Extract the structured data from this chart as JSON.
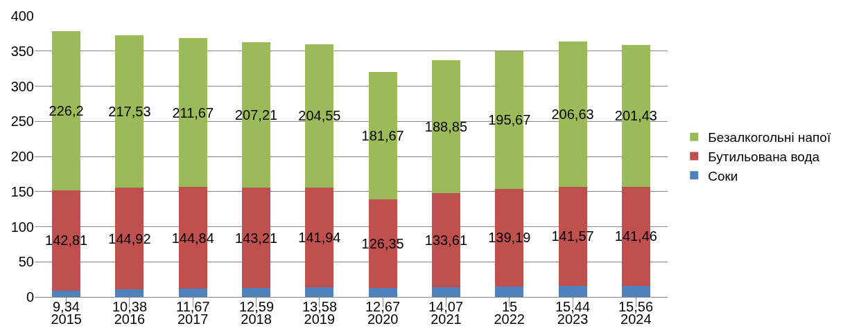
{
  "chart_data": {
    "type": "bar",
    "stacked": true,
    "categories": [
      "2015",
      "2016",
      "2017",
      "2018",
      "2019",
      "2020",
      "2021",
      "2022",
      "2023",
      "2024"
    ],
    "series": [
      {
        "name": "Соки",
        "color": "#4f81bd",
        "values": [
          9.34,
          10.38,
          11.67,
          12.59,
          13.58,
          12.67,
          14.07,
          15,
          15.44,
          15.56
        ],
        "value_labels": [
          "9,34",
          "10,38",
          "11,67",
          "12,59",
          "13,58",
          "12,67",
          "14,07",
          "15",
          "15,44",
          "15,56"
        ]
      },
      {
        "name": "Бутильована вода",
        "color": "#c0504d",
        "values": [
          142.81,
          144.92,
          144.84,
          143.21,
          141.94,
          126.35,
          133.61,
          139.19,
          141.57,
          141.46
        ],
        "value_labels": [
          "142,81",
          "144,92",
          "144,84",
          "143,21",
          "141,94",
          "126,35",
          "133,61",
          "139,19",
          "141,57",
          "141,46"
        ]
      },
      {
        "name": "Безалкогольні напої",
        "color": "#9bbb59",
        "values": [
          226.2,
          217.53,
          211.67,
          207.21,
          204.55,
          181.67,
          188.85,
          195.67,
          206.63,
          201.43
        ],
        "value_labels": [
          "226,2",
          "217,53",
          "211,67",
          "207,21",
          "204,55",
          "181,67",
          "188,85",
          "195,67",
          "206,63",
          "201,43"
        ]
      }
    ],
    "ylim": [
      0,
      400
    ],
    "yticks": [
      0,
      50,
      100,
      150,
      200,
      250,
      300,
      350,
      400
    ],
    "grid": "y",
    "legend": "right"
  }
}
